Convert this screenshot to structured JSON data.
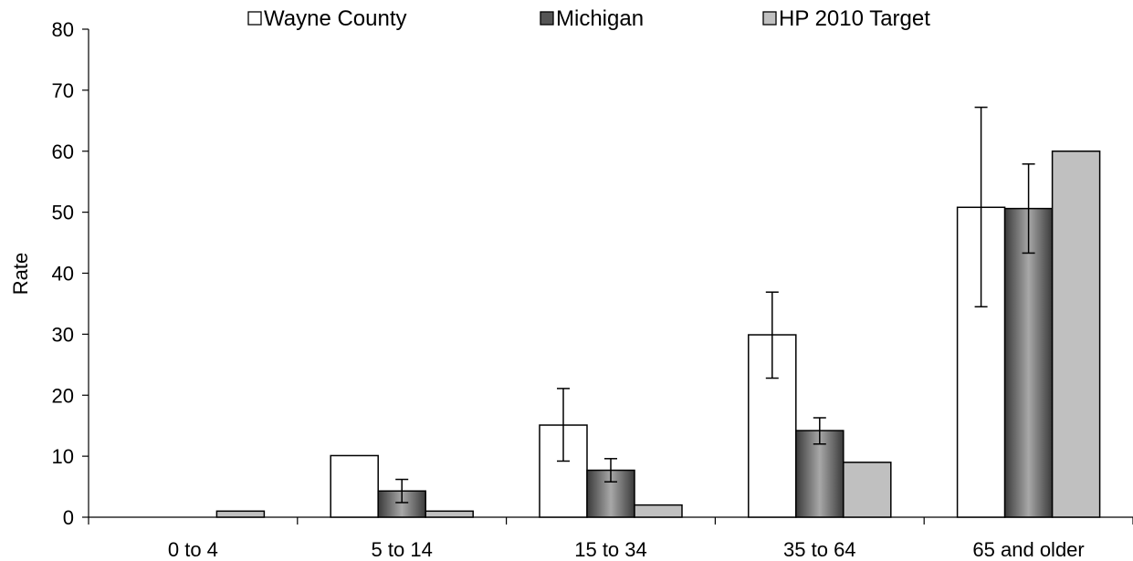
{
  "chart_data": {
    "type": "bar",
    "title": "",
    "xlabel": "",
    "ylabel": "Rate",
    "ylim": [
      0,
      80
    ],
    "yticks": [
      0,
      10,
      20,
      30,
      40,
      50,
      60,
      70,
      80
    ],
    "grid": false,
    "legend_position": "top",
    "categories": [
      "0 to 4",
      "5 to 14",
      "15 to 34",
      "35 to 64",
      "65 and older"
    ],
    "series": [
      {
        "name": "Wayne County",
        "fill": "#ffffff",
        "values": [
          0,
          10.1,
          15.1,
          29.9,
          50.8
        ],
        "error_low": [
          null,
          null,
          9.2,
          22.8,
          34.5
        ],
        "error_high": [
          null,
          null,
          21.1,
          36.9,
          67.2
        ]
      },
      {
        "name": "Michigan",
        "fill": "#666666",
        "values": [
          0,
          4.3,
          7.7,
          14.2,
          50.6
        ],
        "error_low": [
          null,
          2.4,
          5.8,
          12.0,
          43.3
        ],
        "error_high": [
          null,
          6.2,
          9.6,
          16.3,
          57.9
        ]
      },
      {
        "name": "HP 2010 Target",
        "fill": "#c0c0c0",
        "values": [
          1,
          1,
          2,
          9,
          60
        ],
        "error_low": [
          null,
          null,
          null,
          null,
          null
        ],
        "error_high": [
          null,
          null,
          null,
          null,
          null
        ]
      }
    ]
  }
}
